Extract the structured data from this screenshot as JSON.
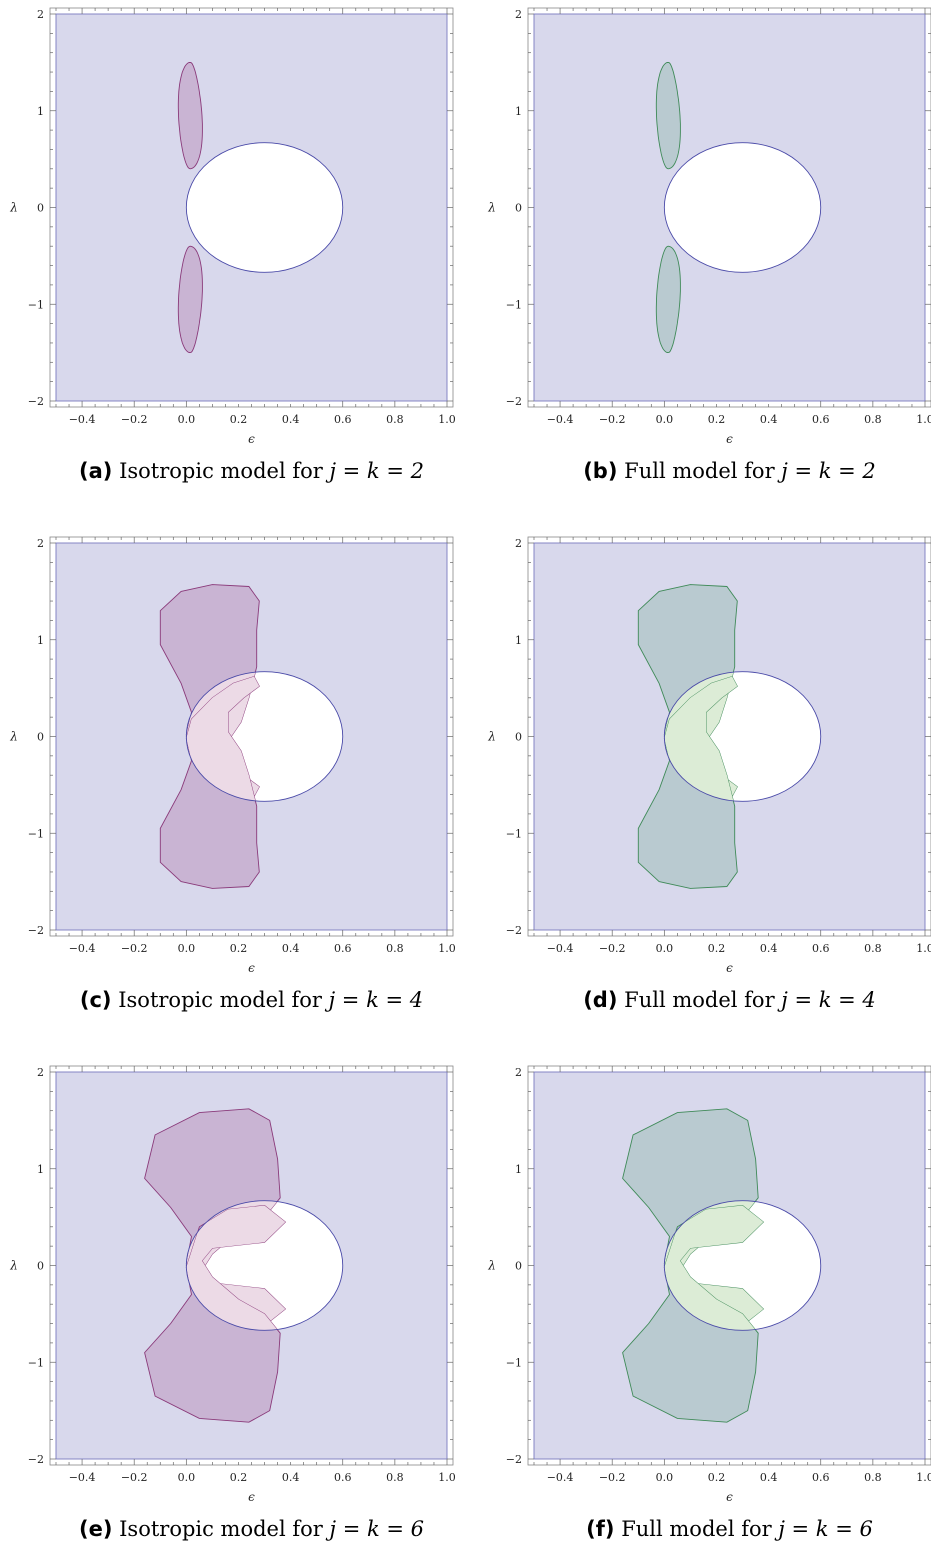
{
  "colors": {
    "background_region": "#d8d8ec",
    "background_edge": "#7a7ac0",
    "circle_edge": "#4a4aa8",
    "isotropic_fill": "#c9b4d3",
    "isotropic_edge": "#8a3a7a",
    "isotropic_overlap": "#ecdae6",
    "full_fill": "#b9cad0",
    "full_edge": "#3f8a58",
    "full_overlap": "#dcecd6"
  },
  "chart_data": [
    {
      "type": "area",
      "xlabel": "ϵ",
      "ylabel": "λ",
      "xlim": [
        -0.5,
        1.0
      ],
      "ylim": [
        -2,
        2
      ],
      "xticks": [
        "−0.4",
        "−0.2",
        "0.0",
        "0.2",
        "0.4",
        "0.6",
        "0.8",
        "1.0"
      ],
      "yticks": [
        "−2",
        "−1",
        "0",
        "1",
        "2"
      ],
      "model": "isotropic",
      "jk": 2,
      "caption": {
        "label": "(a)",
        "text": "Isotropic model for ",
        "math": "j = k = 2"
      }
    },
    {
      "type": "area",
      "xlabel": "ϵ",
      "ylabel": "λ",
      "xlim": [
        -0.5,
        1.0
      ],
      "ylim": [
        -2,
        2
      ],
      "xticks": [
        "−0.4",
        "−0.2",
        "0.0",
        "0.2",
        "0.4",
        "0.6",
        "0.8",
        "1.0"
      ],
      "yticks": [
        "−2",
        "−1",
        "0",
        "1",
        "2"
      ],
      "model": "full",
      "jk": 2,
      "caption": {
        "label": "(b)",
        "text": "Full model for ",
        "math": "j = k = 2"
      }
    },
    {
      "type": "area",
      "xlabel": "ϵ",
      "ylabel": "λ",
      "xlim": [
        -0.5,
        1.0
      ],
      "ylim": [
        -2,
        2
      ],
      "xticks": [
        "−0.4",
        "−0.2",
        "0.0",
        "0.2",
        "0.4",
        "0.6",
        "0.8",
        "1.0"
      ],
      "yticks": [
        "−2",
        "−1",
        "0",
        "1",
        "2"
      ],
      "model": "isotropic",
      "jk": 4,
      "caption": {
        "label": "(c)",
        "text": "Isotropic model for ",
        "math": "j = k = 4"
      }
    },
    {
      "type": "area",
      "xlabel": "ϵ",
      "ylabel": "λ",
      "xlim": [
        -0.5,
        1.0
      ],
      "ylim": [
        -2,
        2
      ],
      "xticks": [
        "−0.4",
        "−0.2",
        "0.0",
        "0.2",
        "0.4",
        "0.6",
        "0.8",
        "1.0"
      ],
      "yticks": [
        "−2",
        "−1",
        "0",
        "1",
        "2"
      ],
      "model": "full",
      "jk": 4,
      "caption": {
        "label": "(d)",
        "text": "Full model for ",
        "math": "j = k = 4"
      }
    },
    {
      "type": "area",
      "xlabel": "ϵ",
      "ylabel": "λ",
      "xlim": [
        -0.5,
        1.0
      ],
      "ylim": [
        -2,
        2
      ],
      "xticks": [
        "−0.4",
        "−0.2",
        "0.0",
        "0.2",
        "0.4",
        "0.6",
        "0.8",
        "1.0"
      ],
      "yticks": [
        "−2",
        "−1",
        "0",
        "1",
        "2"
      ],
      "model": "isotropic",
      "jk": 6,
      "caption": {
        "label": "(e)",
        "text": "Isotropic model for ",
        "math": "j = k = 6"
      }
    },
    {
      "type": "area",
      "xlabel": "ϵ",
      "ylabel": "λ",
      "xlim": [
        -0.5,
        1.0
      ],
      "ylim": [
        -2,
        2
      ],
      "xticks": [
        "−0.4",
        "−0.2",
        "0.0",
        "0.2",
        "0.4",
        "0.6",
        "0.8",
        "1.0"
      ],
      "yticks": [
        "−2",
        "−1",
        "0",
        "1",
        "2"
      ],
      "model": "full",
      "jk": 6,
      "caption": {
        "label": "(f)",
        "text": "Full model for ",
        "math": "j = k = 6"
      }
    }
  ]
}
